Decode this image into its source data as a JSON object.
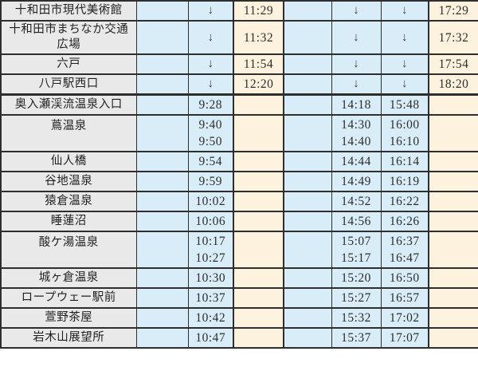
{
  "colors": {
    "gray": "#e9e9e9",
    "blue": "#d9edf8",
    "cream": "#fcf2de",
    "border": "#2e2e2e",
    "station_text": "#1f1f1f",
    "time_text": "#2d2d2d",
    "arrow": "#3d3d3d"
  },
  "timetable": {
    "down_arrow": "↓",
    "rows": [
      {
        "station": "十和田市現代美術館",
        "cells": [
          "",
          "↓",
          "11:29",
          "",
          "↓",
          "↓",
          "17:29"
        ]
      },
      {
        "station": "十和田市まちなか交通広場",
        "cells": [
          "",
          "↓",
          "11:32",
          "",
          "↓",
          "↓",
          "17:32"
        ]
      },
      {
        "station": "六戸",
        "cells": [
          "",
          "↓",
          "11:54",
          "",
          "↓",
          "↓",
          "17:54"
        ]
      },
      {
        "station": "八戸駅西口",
        "cells": [
          "",
          "↓",
          "12:20",
          "",
          "↓",
          "↓",
          "18:20"
        ]
      },
      {
        "station": "奥入瀬渓流温泉入口",
        "cells": [
          "",
          "9:28",
          "",
          "",
          "14:18",
          "15:48",
          ""
        ]
      },
      {
        "station": "蔦温泉",
        "cells": [
          "",
          [
            "9:40",
            "9:50"
          ],
          "",
          "",
          [
            "14:30",
            "14:40"
          ],
          [
            "16:00",
            "16:10"
          ],
          ""
        ]
      },
      {
        "station": "仙人橋",
        "cells": [
          "",
          "9:54",
          "",
          "",
          "14:44",
          "16:14",
          ""
        ]
      },
      {
        "station": "谷地温泉",
        "cells": [
          "",
          "9:59",
          "",
          "",
          "14:49",
          "16:19",
          ""
        ]
      },
      {
        "station": "猿倉温泉",
        "cells": [
          "",
          "10:02",
          "",
          "",
          "14:52",
          "16:22",
          ""
        ]
      },
      {
        "station": "睡蓮沼",
        "cells": [
          "",
          "10:06",
          "",
          "",
          "14:56",
          "16:26",
          ""
        ]
      },
      {
        "station": "酸ケ湯温泉",
        "cells": [
          "",
          [
            "10:17",
            "10:27"
          ],
          "",
          "",
          [
            "15:07",
            "15:17"
          ],
          [
            "16:37",
            "16:47"
          ],
          ""
        ]
      },
      {
        "station": "城ヶ倉温泉",
        "cells": [
          "",
          "10:30",
          "",
          "",
          "15:20",
          "16:50",
          ""
        ]
      },
      {
        "station": "ロープウェー駅前",
        "cells": [
          "",
          "10:37",
          "",
          "",
          "15:27",
          "16:57",
          ""
        ]
      },
      {
        "station": "萱野茶屋",
        "cells": [
          "",
          "10:42",
          "",
          "",
          "15:32",
          "17:02",
          ""
        ]
      },
      {
        "station": "岩木山展望所",
        "cells": [
          "",
          "10:47",
          "",
          "",
          "15:37",
          "17:07",
          ""
        ]
      }
    ]
  }
}
